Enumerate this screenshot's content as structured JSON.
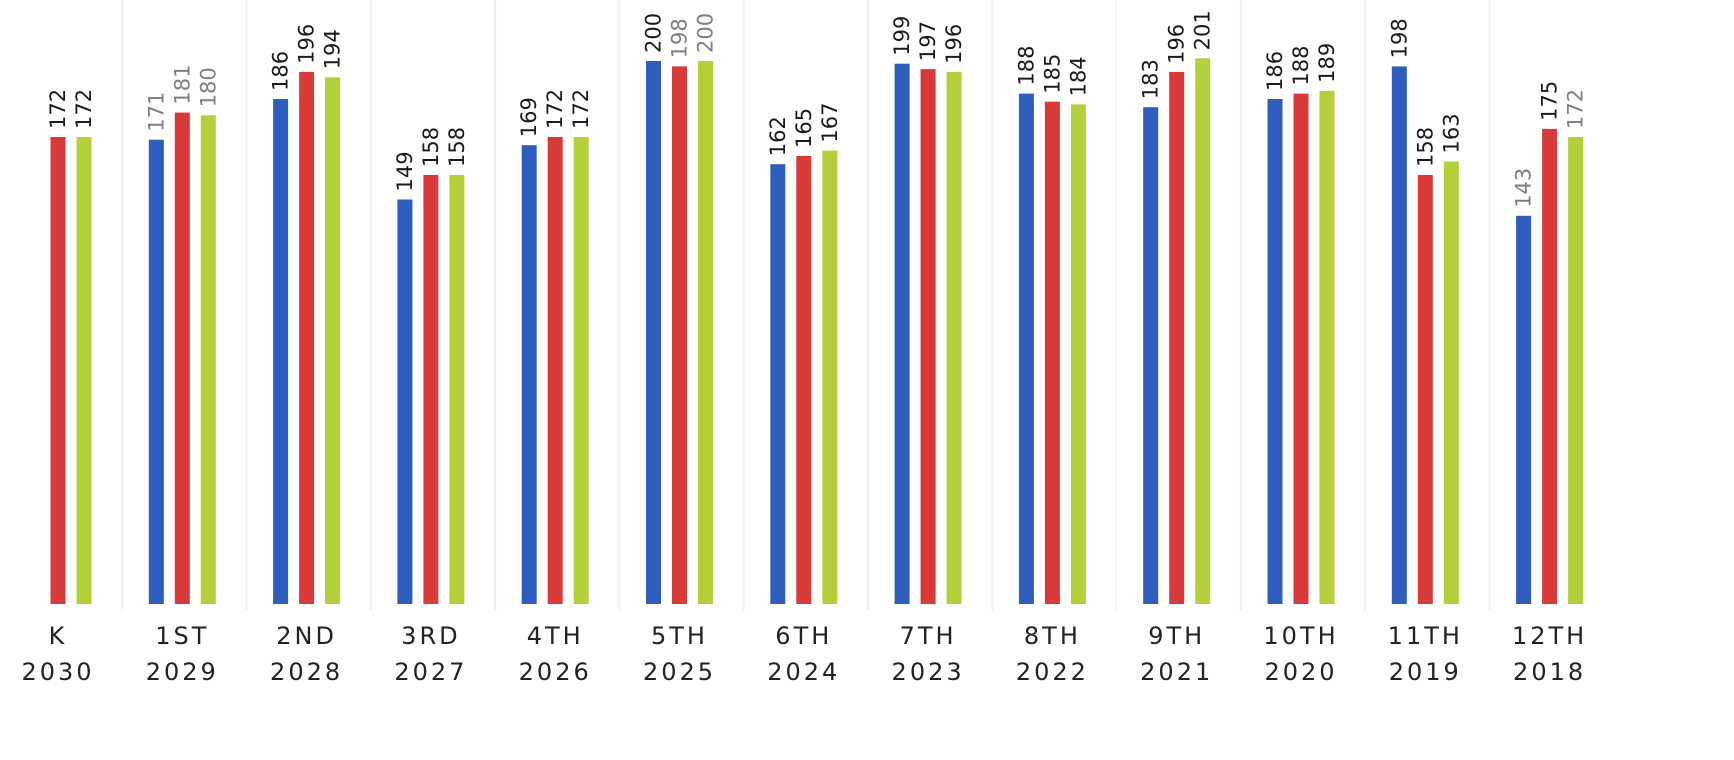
{
  "chart_data": {
    "type": "bar",
    "title": "",
    "xlabel": "",
    "ylabel": "",
    "ylim": [
      0,
      205
    ],
    "grid": false,
    "legend": "none",
    "categories": [
      {
        "grade": "K",
        "year": "2030"
      },
      {
        "grade": "1ST",
        "year": "2029"
      },
      {
        "grade": "2ND",
        "year": "2028"
      },
      {
        "grade": "3RD",
        "year": "2027"
      },
      {
        "grade": "4TH",
        "year": "2026"
      },
      {
        "grade": "5TH",
        "year": "2025"
      },
      {
        "grade": "6TH",
        "year": "2024"
      },
      {
        "grade": "7TH",
        "year": "2023"
      },
      {
        "grade": "8TH",
        "year": "2022"
      },
      {
        "grade": "9TH",
        "year": "2021"
      },
      {
        "grade": "10TH",
        "year": "2020"
      },
      {
        "grade": "11TH",
        "year": "2019"
      },
      {
        "grade": "12TH",
        "year": "2018"
      }
    ],
    "series": [
      {
        "color": "#2f5dbe",
        "values": [
          null,
          171,
          186,
          149,
          169,
          200,
          162,
          199,
          188,
          183,
          186,
          198,
          143
        ],
        "labels": [
          "",
          "171",
          "186",
          "149",
          "169",
          "200",
          "162",
          "199",
          "188",
          "183",
          "186",
          "198",
          "143"
        ]
      },
      {
        "color": "#d83a3a",
        "values": [
          172,
          181,
          196,
          158,
          172,
          198,
          165,
          197,
          185,
          196,
          188,
          158,
          175
        ],
        "labels": [
          "172",
          "181",
          "196",
          "158",
          "172",
          "198",
          "165",
          "197",
          "185",
          "196",
          "188",
          "158",
          "175"
        ]
      },
      {
        "color": "#b3cf3a",
        "values": [
          172,
          180,
          194,
          158,
          172,
          200,
          167,
          196,
          184,
          201,
          189,
          163,
          172
        ],
        "labels": [
          "172",
          "180",
          "194",
          "158",
          "172",
          "200",
          "167",
          "196",
          "184",
          "201",
          "189",
          "163",
          "172"
        ]
      }
    ],
    "label_colors": {
      "default": "#1a1a1a",
      "faded": "#7a7f88"
    },
    "faded_labels": [
      [
        1,
        0
      ],
      [
        12,
        0
      ],
      [
        1,
        1
      ],
      [
        5,
        1
      ],
      [
        1,
        2
      ],
      [
        5,
        2
      ],
      [
        12,
        2
      ]
    ]
  }
}
